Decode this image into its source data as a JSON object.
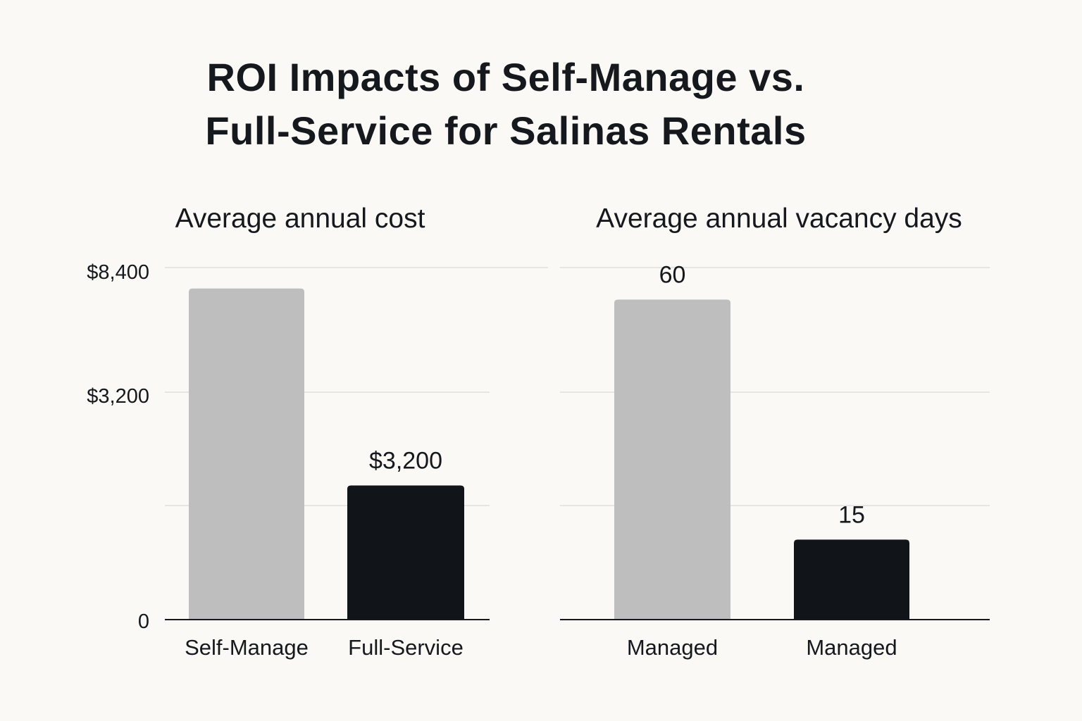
{
  "title_lines": [
    "ROI Impacts of Self-Manage vs.",
    "Full-Service for Salinas Rentals"
  ],
  "colors": {
    "background": "#faf9f6",
    "gray_bar": "#bebebe",
    "dark_bar": "#111418",
    "grid": "#e6e5e1"
  },
  "chart_data": [
    {
      "type": "bar",
      "title": "Average annual cost",
      "categories": [
        "Self-Manage",
        "Full-Service"
      ],
      "values": [
        7900,
        3200
      ],
      "data_labels": [
        "",
        "$3,200"
      ],
      "ytick_labels": [
        "0",
        "$3,200",
        "$8,400"
      ],
      "ylim": [
        0,
        8400
      ],
      "grid": true,
      "bar_colors": [
        "#bebebe",
        "#111418"
      ]
    },
    {
      "type": "bar",
      "title": "Average annual vacancy days",
      "categories": [
        "Managed",
        "Managed"
      ],
      "values": [
        60,
        15
      ],
      "data_labels": [
        "60",
        "15"
      ],
      "ylim": [
        0,
        66
      ],
      "grid": true,
      "bar_colors": [
        "#bebebe",
        "#111418"
      ]
    }
  ]
}
